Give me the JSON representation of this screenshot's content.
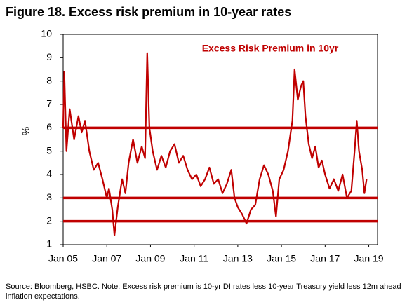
{
  "chart_data": {
    "type": "line",
    "title": "Figure 18. Excess risk premium in 10-year rates",
    "annotation": "Excess Risk Premium in 10yr",
    "y_label": "%",
    "source": "Source: Bloomberg, HSBC. Note: Excess risk premium is 10-yr DI rates less 10-year Treasury yield less 12m ahead inflation expectations.",
    "color": "#c00000",
    "xlim": [
      2005,
      2019.4
    ],
    "xticks": [
      {
        "value": 2005,
        "label": "Jan 05"
      },
      {
        "value": 2007,
        "label": "Jan 07"
      },
      {
        "value": 2009,
        "label": "Jan 09"
      },
      {
        "value": 2011,
        "label": "Jan 11"
      },
      {
        "value": 2013,
        "label": "Jan 13"
      },
      {
        "value": 2015,
        "label": "Jan 15"
      },
      {
        "value": 2017,
        "label": "Jan 17"
      },
      {
        "value": 2019,
        "label": "Jan 19"
      }
    ],
    "ylim": [
      1,
      10
    ],
    "yticks": [
      1,
      2,
      3,
      4,
      5,
      6,
      7,
      8,
      9,
      10
    ],
    "reference_lines": [
      6,
      3,
      2
    ],
    "x": [
      2005.0,
      2005.05,
      2005.15,
      2005.3,
      2005.5,
      2005.7,
      2005.85,
      2006.0,
      2006.2,
      2006.4,
      2006.6,
      2006.8,
      2007.0,
      2007.1,
      2007.25,
      2007.35,
      2007.5,
      2007.7,
      2007.85,
      2008.0,
      2008.2,
      2008.4,
      2008.6,
      2008.75,
      2008.85,
      2008.95,
      2009.1,
      2009.3,
      2009.5,
      2009.7,
      2009.9,
      2010.1,
      2010.3,
      2010.5,
      2010.7,
      2010.9,
      2011.1,
      2011.3,
      2011.5,
      2011.7,
      2011.9,
      2012.1,
      2012.3,
      2012.5,
      2012.7,
      2012.85,
      2013.0,
      2013.2,
      2013.4,
      2013.6,
      2013.8,
      2014.0,
      2014.2,
      2014.4,
      2014.6,
      2014.75,
      2014.9,
      2015.1,
      2015.3,
      2015.5,
      2015.6,
      2015.75,
      2015.9,
      2016.0,
      2016.1,
      2016.25,
      2016.4,
      2016.55,
      2016.7,
      2016.85,
      2017.0,
      2017.2,
      2017.4,
      2017.6,
      2017.8,
      2018.0,
      2018.2,
      2018.35,
      2018.45,
      2018.55,
      2018.7,
      2018.8,
      2018.9
    ],
    "values": [
      6.0,
      8.4,
      5.0,
      6.8,
      5.5,
      6.5,
      5.8,
      6.3,
      5.0,
      4.2,
      4.5,
      3.8,
      3.0,
      3.4,
      2.5,
      1.4,
      2.6,
      3.8,
      3.2,
      4.5,
      5.5,
      4.5,
      5.2,
      4.7,
      9.2,
      6.0,
      5.0,
      4.2,
      4.8,
      4.3,
      5.0,
      5.3,
      4.5,
      4.8,
      4.2,
      3.8,
      4.0,
      3.5,
      3.8,
      4.3,
      3.6,
      3.8,
      3.2,
      3.6,
      4.2,
      3.0,
      2.6,
      2.3,
      1.9,
      2.5,
      2.7,
      3.8,
      4.4,
      4.0,
      3.3,
      2.2,
      3.8,
      4.2,
      5.0,
      6.3,
      8.5,
      7.2,
      7.8,
      8.0,
      6.5,
      5.3,
      4.7,
      5.2,
      4.3,
      4.6,
      4.0,
      3.4,
      3.8,
      3.3,
      4.0,
      3.0,
      3.3,
      5.0,
      6.3,
      5.0,
      4.2,
      3.2,
      3.8
    ]
  }
}
